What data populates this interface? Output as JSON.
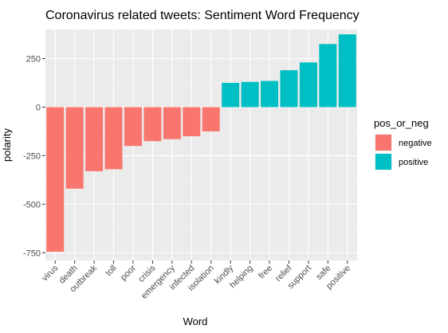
{
  "chart_data": {
    "type": "bar",
    "title": "Coronavirus related tweets: Sentiment Word Frequency",
    "xlabel": "Word",
    "ylabel": "polarity",
    "categories": [
      "virus",
      "death",
      "outbreak",
      "toll",
      "poor",
      "crisis",
      "emergency",
      "infected",
      "isolation",
      "kindly",
      "helping",
      "free",
      "relief",
      "support",
      "safe",
      "positive"
    ],
    "values": [
      -745,
      -420,
      -330,
      -320,
      -200,
      -175,
      -165,
      -150,
      -125,
      125,
      130,
      135,
      190,
      230,
      325,
      375
    ],
    "groups": [
      "negative",
      "negative",
      "negative",
      "negative",
      "negative",
      "negative",
      "negative",
      "negative",
      "negative",
      "positive",
      "positive",
      "positive",
      "positive",
      "positive",
      "positive",
      "positive"
    ],
    "ylim": [
      -790,
      400
    ],
    "yticks": [
      -750,
      -500,
      -250,
      0,
      250
    ],
    "ytick_labels": [
      "-750",
      "-500",
      "-250",
      "0",
      "250"
    ],
    "grid": true,
    "legend": {
      "title": "pos_or_neg",
      "placement": "right",
      "entries": [
        {
          "label": "negative",
          "color": "#F8766D"
        },
        {
          "label": "positive",
          "color": "#00BFC4"
        }
      ]
    },
    "colors": {
      "negative": "#F8766D",
      "positive": "#00BFC4",
      "panel": "#EBEBEB",
      "grid_major": "#FFFFFF"
    }
  }
}
